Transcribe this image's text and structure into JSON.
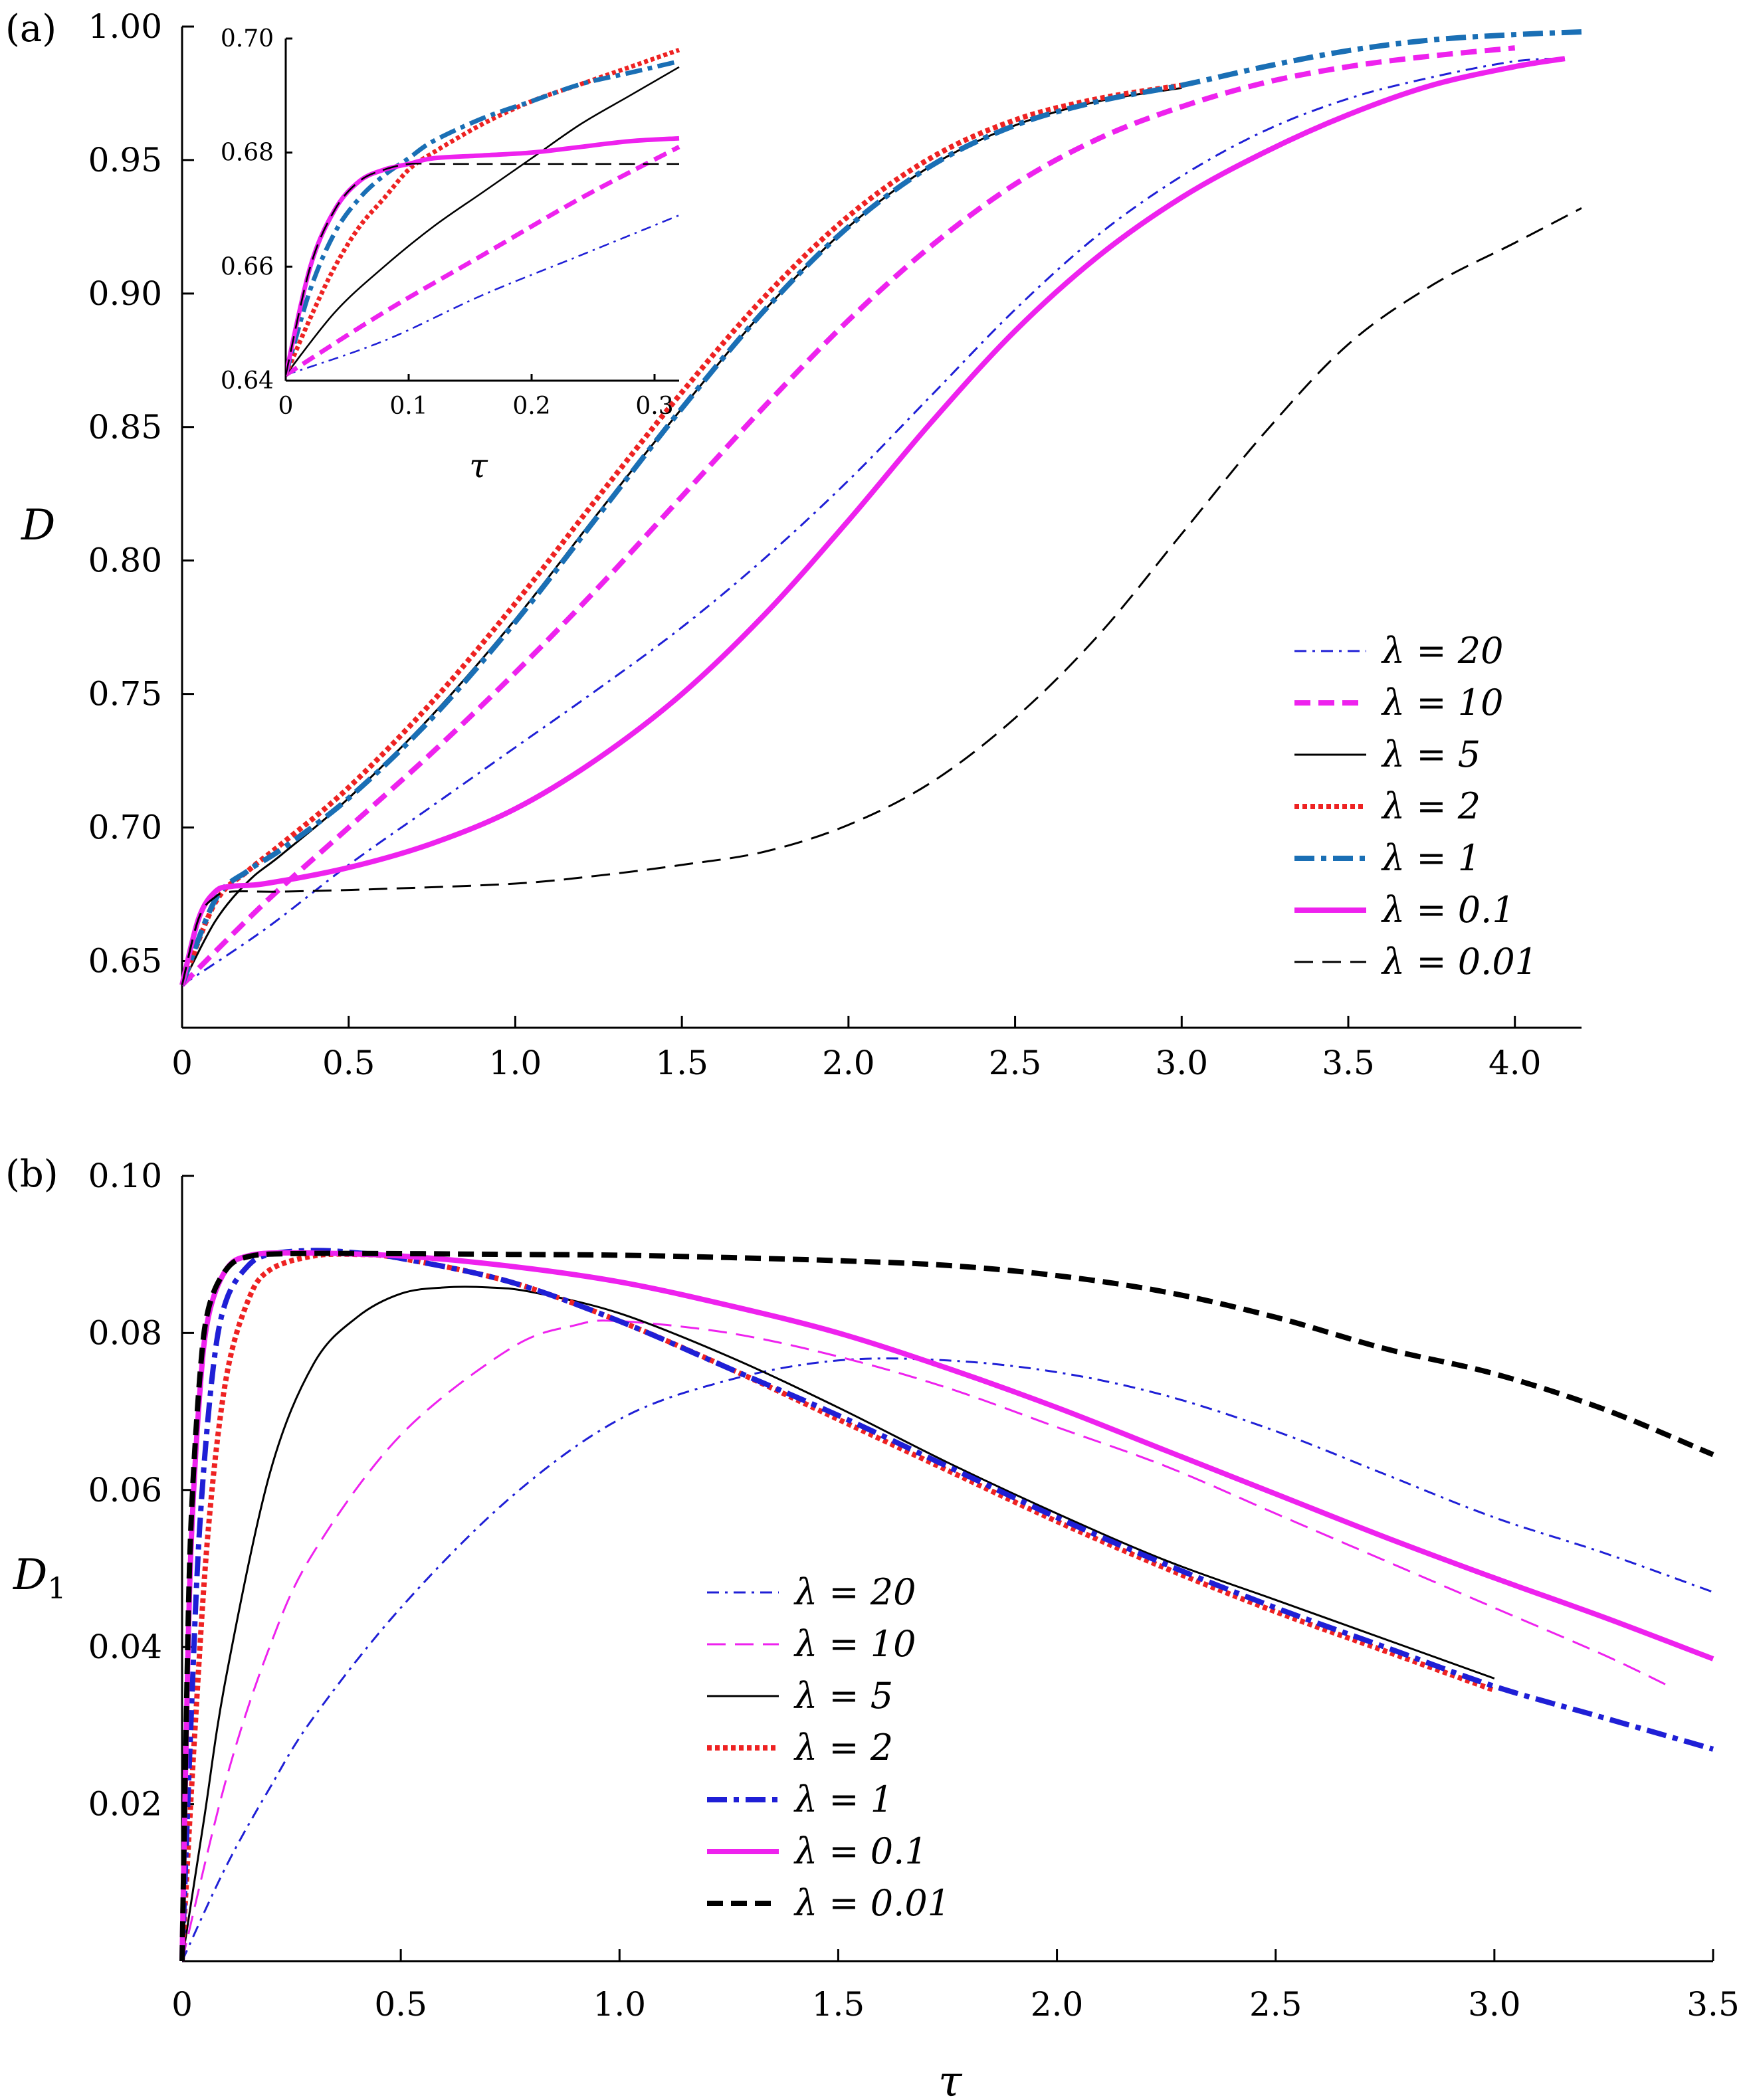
{
  "chart_data": [
    {
      "panel_label": "(a)",
      "type": "line",
      "xlabel": "",
      "ylabel": "D",
      "xlim": [
        0,
        4.2
      ],
      "ylim": [
        0.625,
        1.0
      ],
      "xticks": [
        "0",
        "0.5",
        "1.0",
        "1.5",
        "2.0",
        "2.5",
        "3.0",
        "3.5",
        "4.0"
      ],
      "yticks": [
        "0.65",
        "0.70",
        "0.75",
        "0.80",
        "0.85",
        "0.90",
        "0.95",
        "1.00"
      ],
      "legend_position": "right",
      "series": [
        {
          "name": "λ = 20",
          "color": "#1f1fd6",
          "style": "dashdot-thin",
          "x": [
            0,
            0.25,
            0.5,
            0.75,
            1.0,
            1.25,
            1.5,
            1.75,
            2.0,
            2.25,
            2.5,
            2.75,
            3.0,
            3.25,
            3.5,
            3.75,
            4.0,
            4.15
          ],
          "y": [
            0.641,
            0.662,
            0.686,
            0.708,
            0.73,
            0.752,
            0.775,
            0.801,
            0.83,
            0.862,
            0.894,
            0.922,
            0.944,
            0.961,
            0.973,
            0.981,
            0.987,
            0.988
          ]
        },
        {
          "name": "λ = 10",
          "color": "#ee22ee",
          "style": "dashed-thick",
          "x": [
            0,
            0.25,
            0.5,
            0.75,
            1.0,
            1.25,
            1.5,
            1.75,
            2.0,
            2.25,
            2.5,
            2.75,
            3.0,
            3.25,
            3.5,
            3.75,
            4.0
          ],
          "y": [
            0.641,
            0.672,
            0.7,
            0.728,
            0.758,
            0.79,
            0.824,
            0.858,
            0.89,
            0.918,
            0.941,
            0.958,
            0.97,
            0.979,
            0.985,
            0.989,
            0.992
          ]
        },
        {
          "name": "λ = 5",
          "color": "#000000",
          "style": "solid-thin",
          "x": [
            0,
            0.1,
            0.2,
            0.3,
            0.5,
            0.75,
            1.0,
            1.25,
            1.5,
            1.75,
            2.0,
            2.25,
            2.5,
            2.75,
            3.0
          ],
          "y": [
            0.641,
            0.665,
            0.68,
            0.69,
            0.711,
            0.742,
            0.778,
            0.818,
            0.857,
            0.894,
            0.925,
            0.948,
            0.963,
            0.972,
            0.977
          ]
        },
        {
          "name": "λ = 2",
          "color": "#ee2222",
          "style": "dotted-thick",
          "x": [
            0,
            0.1,
            0.2,
            0.3,
            0.5,
            0.75,
            1.0,
            1.25,
            1.5,
            1.75,
            2.0,
            2.25,
            2.5,
            2.75,
            3.0
          ],
          "y": [
            0.641,
            0.672,
            0.684,
            0.694,
            0.715,
            0.747,
            0.784,
            0.824,
            0.863,
            0.899,
            0.929,
            0.951,
            0.965,
            0.973,
            0.978
          ]
        },
        {
          "name": "λ = 1",
          "color": "#1a6fb5",
          "style": "dashdot-thick",
          "x": [
            0,
            0.1,
            0.2,
            0.3,
            0.5,
            0.75,
            1.0,
            1.25,
            1.5,
            1.75,
            2.0,
            2.25,
            2.5,
            2.75,
            3.0,
            3.25,
            3.5,
            3.75,
            4.0,
            4.2
          ],
          "y": [
            0.641,
            0.673,
            0.684,
            0.692,
            0.711,
            0.741,
            0.777,
            0.817,
            0.857,
            0.894,
            0.925,
            0.948,
            0.963,
            0.972,
            0.978,
            0.985,
            0.991,
            0.995,
            0.997,
            0.998
          ]
        },
        {
          "name": "λ = 0.1",
          "color": "#ee22ee",
          "style": "solid-thick",
          "x": [
            0,
            0.05,
            0.1,
            0.15,
            0.25,
            0.5,
            0.75,
            1.0,
            1.25,
            1.5,
            1.75,
            2.0,
            2.25,
            2.5,
            2.75,
            3.0,
            3.25,
            3.5,
            3.75,
            4.0,
            4.15
          ],
          "y": [
            0.641,
            0.666,
            0.676,
            0.678,
            0.679,
            0.685,
            0.694,
            0.707,
            0.726,
            0.75,
            0.78,
            0.815,
            0.852,
            0.886,
            0.914,
            0.936,
            0.953,
            0.967,
            0.978,
            0.985,
            0.988
          ]
        },
        {
          "name": "λ = 0.01",
          "color": "#000000",
          "style": "dashed-thin",
          "x": [
            0,
            0.05,
            0.1,
            0.15,
            0.3,
            0.6,
            1.0,
            1.25,
            1.5,
            1.75,
            2.0,
            2.25,
            2.5,
            2.75,
            3.0,
            3.25,
            3.5,
            3.75,
            4.0,
            4.2
          ],
          "y": [
            0.641,
            0.666,
            0.674,
            0.676,
            0.676,
            0.677,
            0.679,
            0.682,
            0.686,
            0.691,
            0.701,
            0.717,
            0.741,
            0.772,
            0.81,
            0.848,
            0.881,
            0.903,
            0.919,
            0.932
          ]
        }
      ],
      "inset": {
        "xlabel": "τ",
        "xlim": [
          0,
          0.32
        ],
        "ylim": [
          0.64,
          0.7
        ],
        "xticks": [
          "0",
          "0.1",
          "0.2",
          "0.3"
        ],
        "yticks": [
          "0.64",
          "0.66",
          "0.68",
          "0.70"
        ],
        "series": [
          {
            "name": "λ = 20",
            "x": [
              0,
              0.08,
              0.16,
              0.24,
              0.32
            ],
            "y": [
              0.641,
              0.647,
              0.655,
              0.662,
              0.669
            ]
          },
          {
            "name": "λ = 10",
            "x": [
              0,
              0.08,
              0.16,
              0.24,
              0.32
            ],
            "y": [
              0.641,
              0.652,
              0.662,
              0.672,
              0.681
            ]
          },
          {
            "name": "λ = 5",
            "x": [
              0,
              0.04,
              0.08,
              0.12,
              0.16,
              0.2,
              0.24,
              0.28,
              0.32
            ],
            "y": [
              0.641,
              0.652,
              0.66,
              0.667,
              0.673,
              0.679,
              0.685,
              0.69,
              0.695
            ]
          },
          {
            "name": "λ = 2",
            "x": [
              0,
              0.02,
              0.04,
              0.06,
              0.08,
              0.1,
              0.12,
              0.16,
              0.2,
              0.24,
              0.28,
              0.32
            ],
            "y": [
              0.641,
              0.651,
              0.66,
              0.667,
              0.672,
              0.677,
              0.68,
              0.685,
              0.689,
              0.692,
              0.695,
              0.698
            ]
          },
          {
            "name": "λ = 1",
            "x": [
              0,
              0.02,
              0.04,
              0.06,
              0.08,
              0.1,
              0.12,
              0.16,
              0.2,
              0.24,
              0.28,
              0.32
            ],
            "y": [
              0.641,
              0.656,
              0.666,
              0.672,
              0.676,
              0.679,
              0.682,
              0.686,
              0.689,
              0.692,
              0.694,
              0.696
            ]
          },
          {
            "name": "λ = 0.1",
            "x": [
              0,
              0.02,
              0.04,
              0.06,
              0.08,
              0.1,
              0.12,
              0.16,
              0.2,
              0.24,
              0.28,
              0.32
            ],
            "y": [
              0.641,
              0.66,
              0.67,
              0.675,
              0.677,
              0.678,
              0.679,
              0.6795,
              0.68,
              0.681,
              0.682,
              0.6825
            ]
          },
          {
            "name": "λ = 0.01",
            "x": [
              0,
              0.02,
              0.04,
              0.06,
              0.08,
              0.1,
              0.12,
              0.16,
              0.2,
              0.24,
              0.28,
              0.32
            ],
            "y": [
              0.641,
              0.66,
              0.67,
              0.675,
              0.677,
              0.678,
              0.678,
              0.678,
              0.678,
              0.678,
              0.678,
              0.678
            ]
          }
        ]
      }
    },
    {
      "panel_label": "(b)",
      "type": "line",
      "xlabel": "τ",
      "ylabel": "D1",
      "ylabel_main": "D",
      "ylabel_sub": "1",
      "xlim": [
        0,
        3.5
      ],
      "ylim": [
        0,
        0.1
      ],
      "xticks": [
        "0",
        "0.5",
        "1.0",
        "1.5",
        "2.0",
        "2.5",
        "3.0",
        "3.5"
      ],
      "yticks": [
        "0.02",
        "0.04",
        "0.06",
        "0.08",
        "0.10"
      ],
      "legend_position": "center",
      "series": [
        {
          "name": "λ = 20",
          "color": "#1f1fd6",
          "style": "dashdot-thin",
          "x": [
            0,
            0.1,
            0.2,
            0.3,
            0.5,
            0.75,
            1.0,
            1.25,
            1.5,
            1.75,
            2.0,
            2.25,
            2.5,
            2.75,
            3.0,
            3.25,
            3.5
          ],
          "y": [
            0.0,
            0.012,
            0.022,
            0.031,
            0.045,
            0.059,
            0.069,
            0.074,
            0.0765,
            0.0765,
            0.075,
            0.072,
            0.0675,
            0.062,
            0.0565,
            0.052,
            0.047
          ]
        },
        {
          "name": "λ = 10",
          "color": "#ee22ee",
          "style": "dashed-thin",
          "x": [
            0,
            0.1,
            0.2,
            0.3,
            0.5,
            0.75,
            0.9,
            1.0,
            1.25,
            1.5,
            1.75,
            2.0,
            2.25,
            2.5,
            2.75,
            3.0,
            3.25,
            3.4
          ],
          "y": [
            0.0,
            0.023,
            0.04,
            0.052,
            0.067,
            0.078,
            0.081,
            0.0815,
            0.08,
            0.077,
            0.073,
            0.068,
            0.063,
            0.057,
            0.051,
            0.045,
            0.039,
            0.035
          ]
        },
        {
          "name": "λ = 5",
          "color": "#000000",
          "style": "solid-thin",
          "x": [
            0,
            0.05,
            0.1,
            0.2,
            0.3,
            0.4,
            0.5,
            0.6,
            0.7,
            0.8,
            1.0,
            1.25,
            1.5,
            1.75,
            2.0,
            2.25,
            2.5,
            2.75,
            3.0
          ],
          "y": [
            0.0,
            0.018,
            0.036,
            0.062,
            0.076,
            0.082,
            0.085,
            0.0858,
            0.0858,
            0.0852,
            0.0825,
            0.077,
            0.0705,
            0.0635,
            0.057,
            0.051,
            0.046,
            0.041,
            0.036
          ]
        },
        {
          "name": "λ = 2",
          "color": "#ee2222",
          "style": "dotted-thick",
          "x": [
            0,
            0.03,
            0.06,
            0.1,
            0.15,
            0.2,
            0.3,
            0.4,
            0.5,
            0.75,
            1.0,
            1.25,
            1.5,
            1.75,
            2.0,
            2.25,
            2.5,
            2.75,
            3.0
          ],
          "y": [
            0.0,
            0.03,
            0.055,
            0.074,
            0.084,
            0.088,
            0.0898,
            0.09,
            0.0895,
            0.0865,
            0.0815,
            0.0755,
            0.069,
            0.0625,
            0.056,
            0.05,
            0.0445,
            0.0395,
            0.0345
          ]
        },
        {
          "name": "λ = 1",
          "color": "#1f1fd6",
          "style": "dashdot-thick",
          "x": [
            0,
            0.02,
            0.04,
            0.07,
            0.1,
            0.15,
            0.2,
            0.3,
            0.4,
            0.5,
            0.75,
            1.0,
            1.25,
            1.5,
            1.75,
            2.0,
            2.25,
            2.5,
            2.75,
            3.0,
            3.25,
            3.5
          ],
          "y": [
            0.0,
            0.03,
            0.055,
            0.075,
            0.084,
            0.0885,
            0.09,
            0.0905,
            0.0902,
            0.0895,
            0.0865,
            0.0815,
            0.0755,
            0.0695,
            0.063,
            0.0565,
            0.0505,
            0.045,
            0.04,
            0.035,
            0.031,
            0.027
          ]
        },
        {
          "name": "λ = 0.1",
          "color": "#ee22ee",
          "style": "solid-thick",
          "x": [
            0,
            0.01,
            0.02,
            0.04,
            0.06,
            0.1,
            0.15,
            0.25,
            0.5,
            0.75,
            1.0,
            1.25,
            1.5,
            1.75,
            2.0,
            2.25,
            2.5,
            2.75,
            3.0,
            3.25,
            3.5
          ],
          "y": [
            0.0,
            0.03,
            0.052,
            0.072,
            0.082,
            0.088,
            0.0898,
            0.0902,
            0.0898,
            0.0885,
            0.0865,
            0.0835,
            0.08,
            0.0755,
            0.0705,
            0.065,
            0.0595,
            0.054,
            0.0488,
            0.0438,
            0.0385
          ]
        },
        {
          "name": "λ = 0.01",
          "color": "#000000",
          "style": "dashed-thick",
          "x": [
            0,
            0.01,
            0.02,
            0.04,
            0.06,
            0.1,
            0.15,
            0.25,
            0.5,
            0.75,
            1.0,
            1.25,
            1.5,
            1.75,
            2.0,
            2.25,
            2.5,
            2.75,
            3.0,
            3.25,
            3.5
          ],
          "y": [
            0.0,
            0.032,
            0.055,
            0.074,
            0.083,
            0.088,
            0.0897,
            0.0901,
            0.0901,
            0.09,
            0.0899,
            0.0896,
            0.0892,
            0.0886,
            0.0873,
            0.0852,
            0.082,
            0.078,
            0.0748,
            0.0703,
            0.0645
          ]
        }
      ]
    }
  ]
}
